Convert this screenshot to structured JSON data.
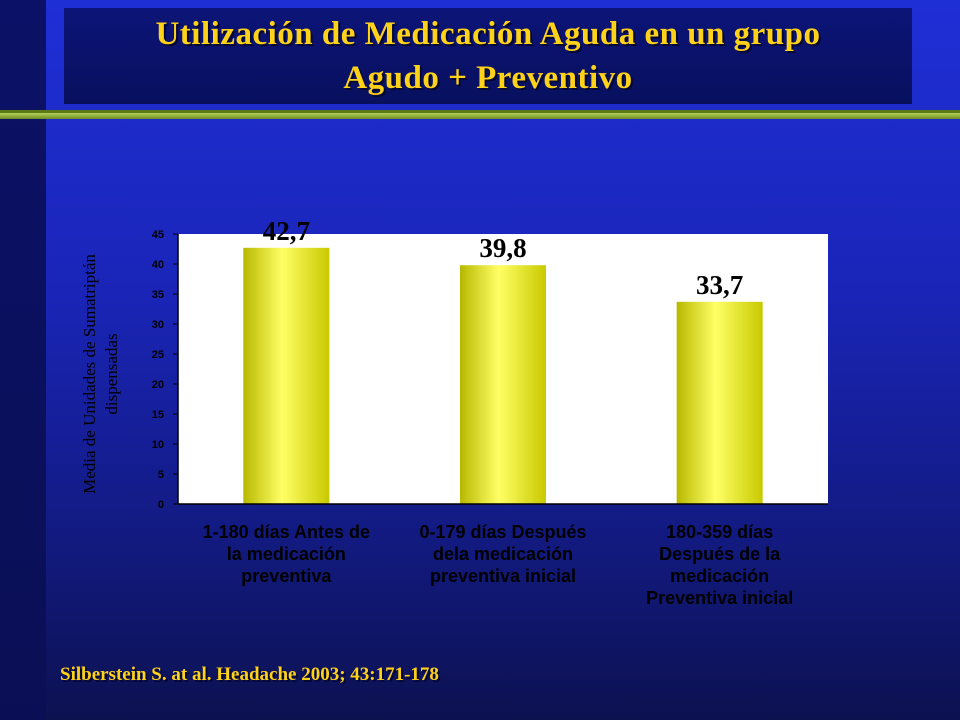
{
  "slide": {
    "title_line1": "Utilización  de Medicación Aguda en un grupo",
    "title_line2": "Agudo + Preventivo",
    "citation": "Silberstein S. at al. Headache 2003; 43:171-178"
  },
  "colors": {
    "bar_fill": "#e6e600",
    "bar_highlight": "#ffff80",
    "plot_background": "#ffffff",
    "title_text": "#ffd21a",
    "background": "#1a25b8"
  },
  "chart_data": {
    "type": "bar",
    "title": "",
    "xlabel": "",
    "ylabel": "Media de Unidades de Sumatriptán dispensadas",
    "ylabel_lines": [
      "Media de Unidades de Sumatriptán",
      "dispensadas"
    ],
    "ylim": [
      0,
      45
    ],
    "yticks": [
      0,
      5,
      10,
      15,
      20,
      25,
      30,
      35,
      40,
      45
    ],
    "grid": false,
    "categories": [
      "1-180 días Antes de la medicación preventiva",
      "0-179 días Después dela medicación preventiva inicial",
      "180-359 días Después de la medicación Preventiva inicial"
    ],
    "category_lines": [
      [
        "1-180 días Antes de",
        "la medicación",
        "preventiva"
      ],
      [
        "0-179 días Después",
        "dela medicación",
        "preventiva inicial"
      ],
      [
        "180-359 días",
        "Después de la",
        "medicación",
        "Preventiva inicial"
      ]
    ],
    "values": [
      42.7,
      39.8,
      33.7
    ],
    "data_labels": [
      "42,7",
      "39,8",
      "33,7"
    ]
  }
}
